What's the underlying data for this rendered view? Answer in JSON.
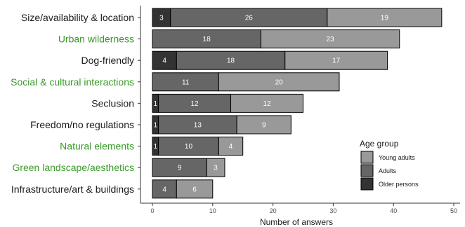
{
  "chart_data": {
    "type": "bar",
    "orientation": "horizontal",
    "stacked": true,
    "categories": [
      "Size/availability & location",
      "Urban wilderness",
      "Dog-friendly",
      "Social & cultural interactions",
      "Seclusion",
      "Freedom/no regulations",
      "Natural elements",
      "Green landscape/aesthetics",
      "Infrastructure/art & buildings"
    ],
    "category_label_colors": [
      "#1a1a1a",
      "#3a9a2a",
      "#1a1a1a",
      "#3a9a2a",
      "#1a1a1a",
      "#1a1a1a",
      "#3a9a2a",
      "#3a9a2a",
      "#1a1a1a"
    ],
    "series": [
      {
        "name": "Older persons",
        "color": "#333333",
        "values": [
          3,
          0,
          4,
          0,
          1,
          1,
          1,
          0,
          0
        ]
      },
      {
        "name": "Adults",
        "color": "#666666",
        "values": [
          26,
          18,
          18,
          11,
          12,
          13,
          10,
          9,
          4
        ]
      },
      {
        "name": "Young adults",
        "color": "#999999",
        "values": [
          19,
          23,
          17,
          20,
          12,
          9,
          4,
          3,
          6
        ]
      }
    ],
    "xlabel": "Number of answers",
    "ylabel": "",
    "xlim": [
      0,
      50
    ],
    "xticks": [
      0,
      10,
      20,
      30,
      40,
      50
    ],
    "grid": false,
    "legend": {
      "title": "Age group",
      "position": "right",
      "entries": [
        "Young adults",
        "Adults",
        "Older persons"
      ]
    },
    "bar_label_color": "#ffffff"
  }
}
